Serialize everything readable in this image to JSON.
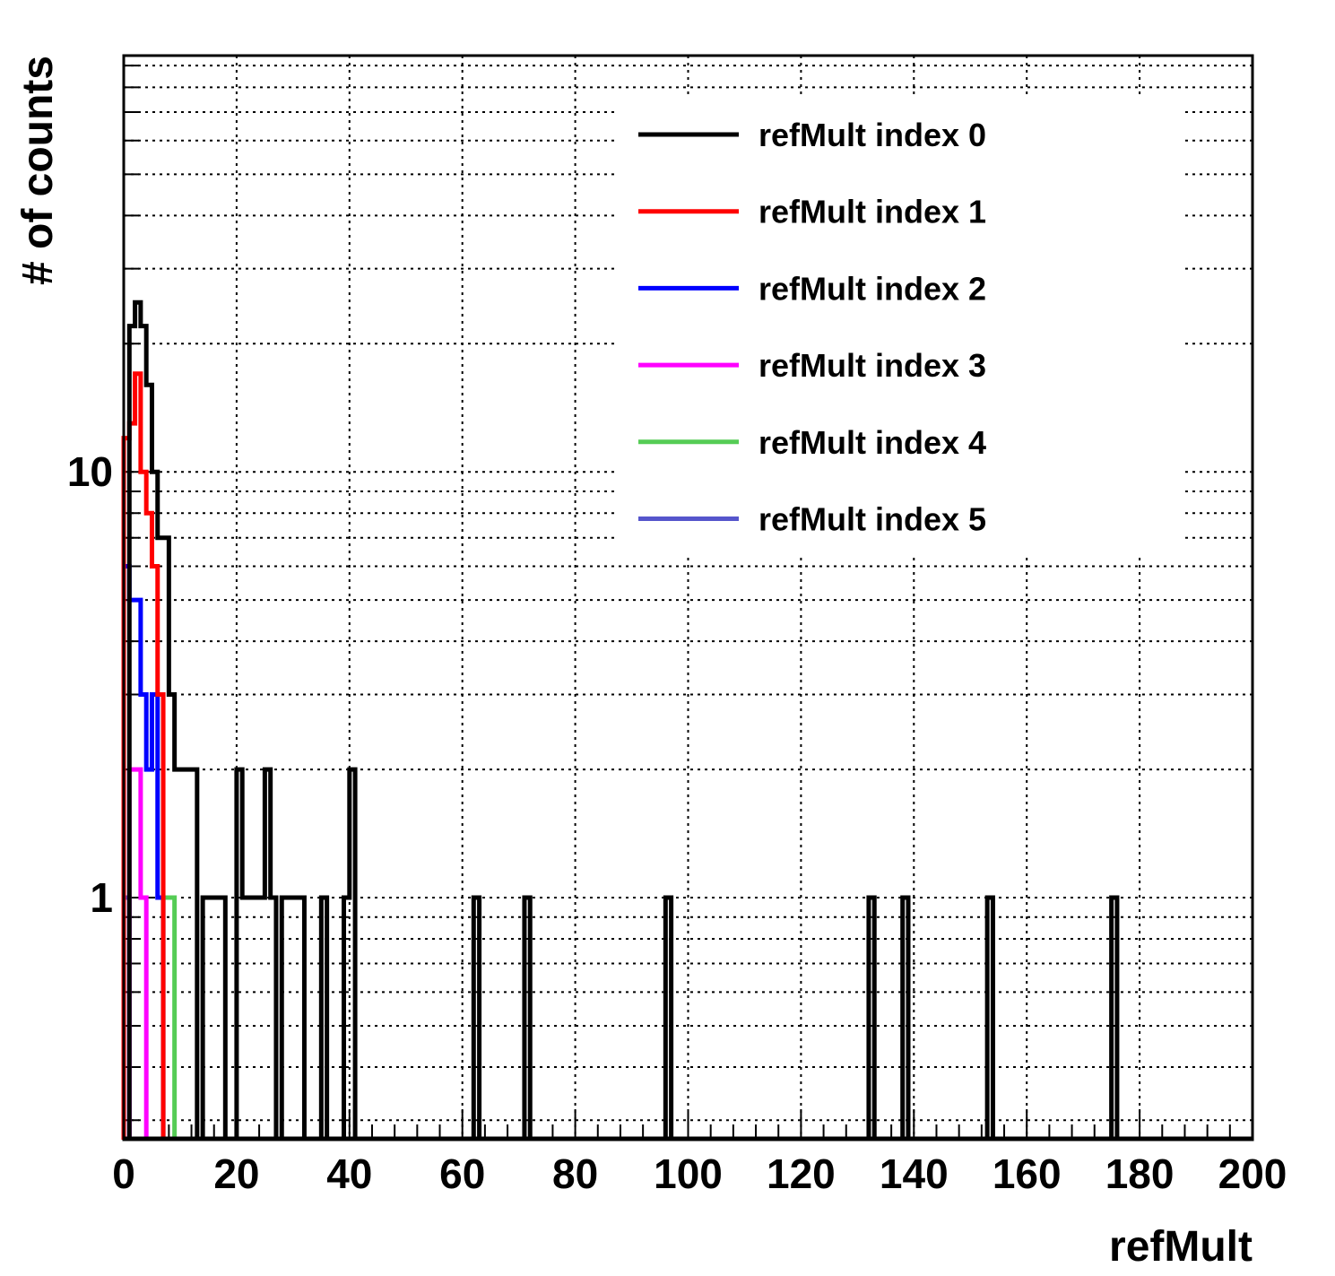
{
  "chart_data": {
    "type": "histogram",
    "xlabel": "refMult",
    "ylabel": "# of counts",
    "xlim": [
      0,
      200
    ],
    "ylim": [
      0.27,
      95
    ],
    "log_y": true,
    "grid": true,
    "x_ticks": [
      0,
      20,
      40,
      60,
      80,
      100,
      120,
      140,
      160,
      180,
      200
    ],
    "x_tick_labels": [
      "0",
      "20",
      "40",
      "60",
      "80",
      "100",
      "120",
      "140",
      "160",
      "180",
      "200"
    ],
    "y_ticks": [
      1,
      10
    ],
    "y_tick_labels": [
      "1",
      "10"
    ],
    "bin_width": 1,
    "legend_position": "top-right",
    "series": [
      {
        "name": "refMult index 0",
        "color": "#000000",
        "bins": [
          [
            1,
            22
          ],
          [
            2,
            25
          ],
          [
            3,
            22
          ],
          [
            4,
            16
          ],
          [
            5,
            10
          ],
          [
            6,
            7
          ],
          [
            7,
            7
          ],
          [
            8,
            3
          ],
          [
            9,
            2
          ],
          [
            10,
            2
          ],
          [
            11,
            2
          ],
          [
            12,
            2
          ],
          [
            14,
            1
          ],
          [
            15,
            1
          ],
          [
            16,
            1
          ],
          [
            17,
            1
          ],
          [
            20,
            2
          ],
          [
            21,
            1
          ],
          [
            22,
            1
          ],
          [
            23,
            1
          ],
          [
            24,
            1
          ],
          [
            25,
            2
          ],
          [
            26,
            1
          ],
          [
            28,
            1
          ],
          [
            29,
            1
          ],
          [
            30,
            1
          ],
          [
            31,
            1
          ],
          [
            35,
            1
          ],
          [
            39,
            1
          ],
          [
            40,
            2
          ],
          [
            62,
            1
          ],
          [
            71,
            1
          ],
          [
            96,
            1
          ],
          [
            132,
            1
          ],
          [
            138,
            1
          ],
          [
            153,
            1
          ],
          [
            175,
            1
          ]
        ]
      },
      {
        "name": "refMult index 1",
        "color": "#ff0000",
        "bins": [
          [
            0,
            12
          ],
          [
            1,
            13
          ],
          [
            2,
            17
          ],
          [
            3,
            10
          ],
          [
            4,
            8
          ],
          [
            5,
            6
          ],
          [
            6,
            3
          ]
        ]
      },
      {
        "name": "refMult index 2",
        "color": "#0000ff",
        "bins": [
          [
            0,
            6
          ],
          [
            1,
            5
          ],
          [
            2,
            5
          ],
          [
            3,
            3
          ],
          [
            4,
            2
          ],
          [
            5,
            3
          ],
          [
            6,
            1
          ]
        ]
      },
      {
        "name": "refMult index 3",
        "color": "#ff00ff",
        "bins": [
          [
            1,
            2
          ],
          [
            2,
            2
          ],
          [
            3,
            1
          ]
        ]
      },
      {
        "name": "refMult index 4",
        "color": "#55cc55",
        "bins": [
          [
            7,
            1
          ],
          [
            8,
            1
          ]
        ]
      },
      {
        "name": "refMult index 5",
        "color": "#5555cc",
        "bins": [
          [
            0,
            1
          ]
        ]
      }
    ]
  }
}
